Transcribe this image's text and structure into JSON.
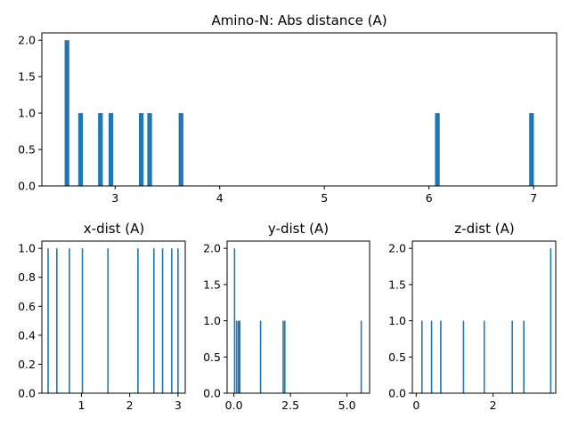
{
  "colors": {
    "bar": "#1f77b4",
    "axis": "#000000",
    "background": "#ffffff"
  },
  "chart_data": [
    {
      "type": "bar",
      "title": "Amino-N: Abs distance (A)",
      "xlim": [
        2.3,
        7.22
      ],
      "ylim": [
        0,
        2.1
      ],
      "xticks": [
        3,
        4,
        5,
        6,
        7
      ],
      "yticks": [
        0.0,
        0.5,
        1.0,
        1.5,
        2.0
      ],
      "yticklabels": [
        "0.0",
        "0.5",
        "1.0",
        "1.5",
        "2.0"
      ],
      "bar_width": 0.045,
      "bars": [
        {
          "x": 2.54,
          "count": 2
        },
        {
          "x": 2.67,
          "count": 1
        },
        {
          "x": 2.86,
          "count": 1
        },
        {
          "x": 2.96,
          "count": 1
        },
        {
          "x": 3.25,
          "count": 1
        },
        {
          "x": 3.33,
          "count": 1
        },
        {
          "x": 3.63,
          "count": 1
        },
        {
          "x": 6.08,
          "count": 1
        },
        {
          "x": 6.98,
          "count": 1
        }
      ]
    },
    {
      "type": "bar",
      "title": "x-dist (A)",
      "xlim": [
        0.18,
        3.15
      ],
      "ylim": [
        0,
        1.05
      ],
      "xticks": [
        1,
        2,
        3
      ],
      "yticks": [
        0.0,
        0.2,
        0.4,
        0.6,
        0.8,
        1.0
      ],
      "yticklabels": [
        "0.0",
        "0.2",
        "0.4",
        "0.6",
        "0.8",
        "1.0"
      ],
      "bar_width": 0.028,
      "bars": [
        {
          "x": 0.31,
          "count": 1
        },
        {
          "x": 0.49,
          "count": 1
        },
        {
          "x": 0.75,
          "count": 1
        },
        {
          "x": 1.02,
          "count": 1
        },
        {
          "x": 1.55,
          "count": 1
        },
        {
          "x": 2.17,
          "count": 1
        },
        {
          "x": 2.5,
          "count": 1
        },
        {
          "x": 2.68,
          "count": 1
        },
        {
          "x": 2.87,
          "count": 1
        },
        {
          "x": 3.0,
          "count": 1
        }
      ]
    },
    {
      "type": "bar",
      "title": "y-dist (A)",
      "xlim": [
        -0.3,
        6.0
      ],
      "ylim": [
        0,
        2.1
      ],
      "xticks": [
        0.0,
        2.5,
        5.0
      ],
      "xticklabels": [
        "0.0",
        "2.5",
        "5.0"
      ],
      "yticks": [
        0.0,
        0.5,
        1.0,
        1.5,
        2.0
      ],
      "yticklabels": [
        "0.0",
        "0.5",
        "1.0",
        "1.5",
        "2.0"
      ],
      "bar_width": 0.058,
      "bars": [
        {
          "x": 0.03,
          "count": 2
        },
        {
          "x": 0.12,
          "count": 1
        },
        {
          "x": 0.2,
          "count": 1
        },
        {
          "x": 0.26,
          "count": 1
        },
        {
          "x": 1.18,
          "count": 1
        },
        {
          "x": 2.18,
          "count": 1
        },
        {
          "x": 2.25,
          "count": 1
        },
        {
          "x": 5.63,
          "count": 1
        }
      ]
    },
    {
      "type": "bar",
      "title": "z-dist (A)",
      "xlim": [
        -0.1,
        3.63
      ],
      "ylim": [
        0,
        2.1
      ],
      "xticks": [
        0,
        2
      ],
      "yticks": [
        0.0,
        0.5,
        1.0,
        1.5,
        2.0
      ],
      "yticklabels": [
        "0.0",
        "0.5",
        "1.0",
        "1.5",
        "2.0"
      ],
      "bar_width": 0.034,
      "bars": [
        {
          "x": 0.15,
          "count": 1
        },
        {
          "x": 0.4,
          "count": 1
        },
        {
          "x": 0.64,
          "count": 1
        },
        {
          "x": 1.23,
          "count": 1
        },
        {
          "x": 1.77,
          "count": 1
        },
        {
          "x": 2.5,
          "count": 1
        },
        {
          "x": 2.8,
          "count": 1
        },
        {
          "x": 3.5,
          "count": 2
        }
      ]
    }
  ]
}
